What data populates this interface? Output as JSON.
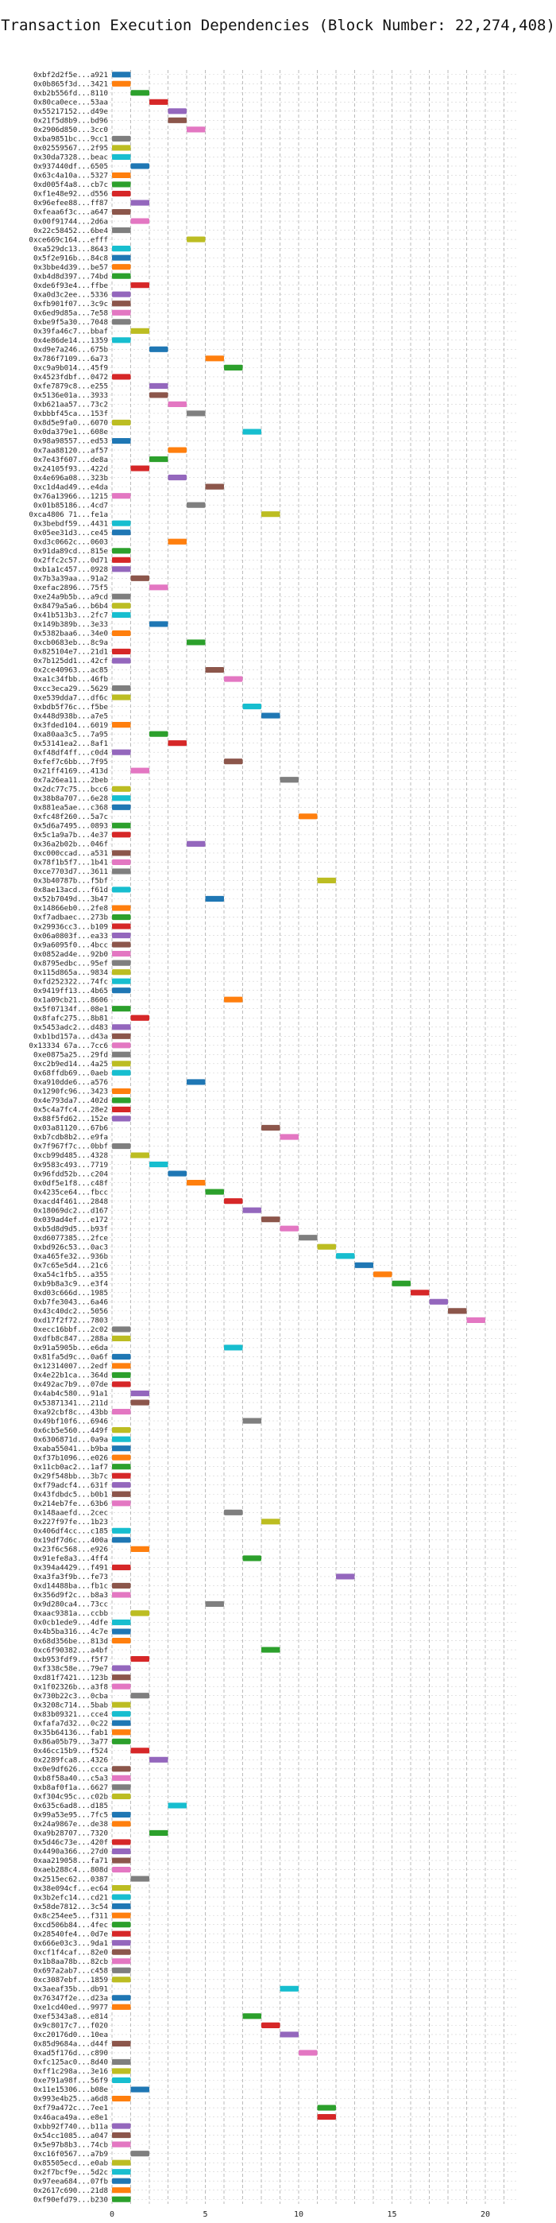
{
  "chart_data": {
    "type": "bar",
    "orientation": "horizontal",
    "title": "Transaction Execution Dependencies (Block Number: 22,274,408)",
    "xlabel": "",
    "ylabel": "",
    "xlim": [
      0,
      21
    ],
    "xticks": [
      0,
      5,
      10,
      15,
      20
    ],
    "grid": true,
    "palette": [
      "#1f77b4",
      "#ff7f0e",
      "#2ca02c",
      "#d62728",
      "#9467bd",
      "#8c564b",
      "#e377c2",
      "#7f7f7f",
      "#bcbd22",
      "#17becf"
    ],
    "transactions": [
      [
        "0xbf2d2f5e...a921",
        0,
        1,
        0
      ],
      [
        "0x0b865f3d...3421",
        0,
        1,
        1
      ],
      [
        "0xb2b556fd...8110",
        1,
        1,
        2
      ],
      [
        "0x80ca0ece...53aa",
        2,
        1,
        3
      ],
      [
        "0x55217152...d49e",
        3,
        1,
        4
      ],
      [
        "0x21f5d8b9...bd96",
        3,
        1,
        5
      ],
      [
        "0x2906d850...3cc0",
        4,
        1,
        6
      ],
      [
        "0xba9851bc...9cc1",
        0,
        1,
        7
      ],
      [
        "0x02559567...2f95",
        0,
        1,
        8
      ],
      [
        "0x30da7328...beac",
        0,
        1,
        9
      ],
      [
        "0x937440df...6505",
        1,
        1,
        0
      ],
      [
        "0x63c4a10a...5327",
        0,
        1,
        1
      ],
      [
        "0xd005f4a8...cb7c",
        0,
        1,
        2
      ],
      [
        "0xf1e48e92...d556",
        0,
        1,
        3
      ],
      [
        "0x96efee88...ff87",
        1,
        1,
        4
      ],
      [
        "0xfeaa6f3c...a647",
        0,
        1,
        5
      ],
      [
        "0x00f91744...2d6a",
        1,
        1,
        6
      ],
      [
        "0x22c58452...6be4",
        0,
        1,
        7
      ],
      [
        "0xce669c164...efff",
        4,
        1,
        8
      ],
      [
        "0xa529dc13...8643",
        0,
        1,
        9
      ],
      [
        "0x5f2e916b...84c8",
        0,
        1,
        0
      ],
      [
        "0x3bbe4d39...be57",
        0,
        1,
        1
      ],
      [
        "0xb4d8d397...74bd",
        0,
        1,
        2
      ],
      [
        "0xde6f93e4...ffbe",
        1,
        1,
        3
      ],
      [
        "0xa0d3c2ee...5336",
        0,
        1,
        4
      ],
      [
        "0xfb901f07...3c9c",
        0,
        1,
        5
      ],
      [
        "0x6ed9d85a...7e58",
        0,
        1,
        6
      ],
      [
        "0xbe9f5a30...7048",
        0,
        1,
        7
      ],
      [
        "0x39fa46c7...bbaf",
        1,
        1,
        8
      ],
      [
        "0x4e86de14...1359",
        0,
        1,
        9
      ],
      [
        "0xd9e7a246...675b",
        2,
        1,
        0
      ],
      [
        "0x786f7109...6a73",
        5,
        1,
        1
      ],
      [
        "0xc9a9b014...45f9",
        6,
        1,
        2
      ],
      [
        "0x4523fdbf...0472",
        0,
        1,
        3
      ],
      [
        "0xfe7879c8...e255",
        2,
        1,
        4
      ],
      [
        "0x5136e01a...3933",
        2,
        1,
        5
      ],
      [
        "0xb621aa57...73c2",
        3,
        1,
        6
      ],
      [
        "0xbbbf45ca...153f",
        4,
        1,
        7
      ],
      [
        "0x8d5e9fa0...6070",
        0,
        1,
        8
      ],
      [
        "0x0da379e1...608e",
        7,
        1,
        9
      ],
      [
        "0x98a98557...ed53",
        0,
        1,
        0
      ],
      [
        "0x7aa88120...af57",
        3,
        1,
        1
      ],
      [
        "0x7e43f607...de8a",
        2,
        1,
        2
      ],
      [
        "0x24105f93...422d",
        1,
        1,
        3
      ],
      [
        "0x4e696a08...323b",
        3,
        1,
        4
      ],
      [
        "0xc1d4ad49...e4da",
        5,
        1,
        5
      ],
      [
        "0x76a13966...1215",
        0,
        1,
        6
      ],
      [
        "0x01b85186...4cd7",
        4,
        1,
        7
      ],
      [
        "0xca4806 71...fe1a",
        8,
        1,
        8
      ],
      [
        "0x3bebdf59...4431",
        0,
        1,
        9
      ],
      [
        "0x05ee31d3...ce45",
        0,
        1,
        0
      ],
      [
        "0xd3c0662c...0603",
        3,
        1,
        1
      ],
      [
        "0x91da89cd...815e",
        0,
        1,
        2
      ],
      [
        "0x2ffc2c57...0d71",
        0,
        1,
        3
      ],
      [
        "0xb1a1c457...0928",
        0,
        1,
        4
      ],
      [
        "0x7b3a39aa...91a2",
        1,
        1,
        5
      ],
      [
        "0xefac2896...75f5",
        2,
        1,
        6
      ],
      [
        "0xe24a9b5b...a9cd",
        0,
        1,
        7
      ],
      [
        "0x8479a5a6...b6b4",
        0,
        1,
        8
      ],
      [
        "0x41b513b3...2fc7",
        0,
        1,
        9
      ],
      [
        "0x149b389b...3e33",
        2,
        1,
        0
      ],
      [
        "0x5382baa6...34e0",
        0,
        1,
        1
      ],
      [
        "0xcb0683eb...8c9a",
        4,
        1,
        2
      ],
      [
        "0x825104e7...21d1",
        0,
        1,
        3
      ],
      [
        "0x7b125dd1...42cf",
        0,
        1,
        4
      ],
      [
        "0x2ce40963...ac85",
        5,
        1,
        5
      ],
      [
        "0xa1c34fbb...46fb",
        6,
        1,
        6
      ],
      [
        "0xcc3eca29...5629",
        0,
        1,
        7
      ],
      [
        "0xe539dda7...df6c",
        0,
        1,
        8
      ],
      [
        "0xbdb5f76c...f5be",
        7,
        1,
        9
      ],
      [
        "0x448d938b...a7e5",
        8,
        1,
        0
      ],
      [
        "0x3fded104...6019",
        0,
        1,
        1
      ],
      [
        "0xa80aa3c5...7a95",
        2,
        1,
        2
      ],
      [
        "0x53141ea2...8af1",
        3,
        1,
        3
      ],
      [
        "0xf48df4ff...c0d4",
        0,
        1,
        4
      ],
      [
        "0xfef7c6bb...7f95",
        6,
        1,
        5
      ],
      [
        "0x21ff4169...413d",
        1,
        1,
        6
      ],
      [
        "0x7a26ea11...2beb",
        9,
        1,
        7
      ],
      [
        "0x2dc77c75...bcc6",
        0,
        1,
        8
      ],
      [
        "0x38b8a707...6e28",
        0,
        1,
        9
      ],
      [
        "0x881ea5ae...c368",
        0,
        1,
        0
      ],
      [
        "0xfc48f260...5a7c",
        10,
        1,
        1
      ],
      [
        "0x5d6a7495...0893",
        0,
        1,
        2
      ],
      [
        "0x5c1a9a7b...4e37",
        0,
        1,
        3
      ],
      [
        "0x36a2b02b...046f",
        4,
        1,
        4
      ],
      [
        "0xc000ccad...a531",
        0,
        1,
        5
      ],
      [
        "0x78f1b5f7...1b41",
        0,
        1,
        6
      ],
      [
        "0xce7703d7...3611",
        0,
        1,
        7
      ],
      [
        "0x3b40787b...f5bf",
        11,
        1,
        8
      ],
      [
        "0x8ae13acd...f61d",
        0,
        1,
        9
      ],
      [
        "0x52b7049d...3b47",
        5,
        1,
        0
      ],
      [
        "0x14866eb0...2fe8",
        0,
        1,
        1
      ],
      [
        "0xf7adbaec...273b",
        0,
        1,
        2
      ],
      [
        "0x29936cc3...b109",
        0,
        1,
        3
      ],
      [
        "0x06a0803f...ea33",
        0,
        1,
        4
      ],
      [
        "0x9a6095f0...4bcc",
        0,
        1,
        5
      ],
      [
        "0x0852ad4e...92b0",
        0,
        1,
        6
      ],
      [
        "0x8795edbc...95ef",
        0,
        1,
        7
      ],
      [
        "0x115d865a...9834",
        0,
        1,
        8
      ],
      [
        "0xfd252322...74fc",
        0,
        1,
        9
      ],
      [
        "0x9419ff13...4b65",
        0,
        1,
        0
      ],
      [
        "0x1a09cb21...8606",
        6,
        1,
        1
      ],
      [
        "0x5f07134f...08e1",
        0,
        1,
        2
      ],
      [
        "0x8fafc275...8b81",
        1,
        1,
        3
      ],
      [
        "0x5453adc2...d483",
        0,
        1,
        4
      ],
      [
        "0xb1bd157a...d43a",
        0,
        1,
        5
      ],
      [
        "0x13334 67a...7cc6",
        0,
        1,
        6
      ],
      [
        "0xe0875a25...29fd",
        0,
        1,
        7
      ],
      [
        "0xc2b9ed14...4a25",
        0,
        1,
        8
      ],
      [
        "0x68ffdb69...0aeb",
        0,
        1,
        9
      ],
      [
        "0xa910dde6...a576",
        4,
        1,
        0
      ],
      [
        "0x1290fc96...3423",
        0,
        1,
        1
      ],
      [
        "0x4e793da7...402d",
        0,
        1,
        2
      ],
      [
        "0x5c4a7fc4...28e2",
        0,
        1,
        3
      ],
      [
        "0x88f5fd62...152e",
        0,
        1,
        4
      ],
      [
        "0x03a81120...67b6",
        8,
        1,
        5
      ],
      [
        "0xb7cdb8b2...e9fa",
        9,
        1,
        6
      ],
      [
        "0x7f967f7c...0bbf",
        0,
        1,
        7
      ],
      [
        "0xcb99d485...4328",
        1,
        1,
        8
      ],
      [
        "0x9583c493...7719",
        2,
        1,
        9
      ],
      [
        "0x96fdd52b...c204",
        3,
        1,
        0
      ],
      [
        "0x0df5e1f8...c48f",
        4,
        1,
        1
      ],
      [
        "0x4235ce64...fbcc",
        5,
        1,
        2
      ],
      [
        "0xacd4f461...2848",
        6,
        1,
        3
      ],
      [
        "0x18069dc2...d167",
        7,
        1,
        4
      ],
      [
        "0x039ad4ef...e172",
        8,
        1,
        5
      ],
      [
        "0xb5d8d9d5...b93f",
        9,
        1,
        6
      ],
      [
        "0xd6077385...2fce",
        10,
        1,
        7
      ],
      [
        "0xbd926c53...0ac3",
        11,
        1,
        8
      ],
      [
        "0xa465fe32...936b",
        12,
        1,
        9
      ],
      [
        "0x7c65e5d4...21c6",
        13,
        1,
        0
      ],
      [
        "0xa54c1fb5...a355",
        14,
        1,
        1
      ],
      [
        "0xb9b8a3c9...e3f4",
        15,
        1,
        2
      ],
      [
        "0xd03c666d...1985",
        16,
        1,
        3
      ],
      [
        "0xb7fe3043...6a46",
        17,
        1,
        4
      ],
      [
        "0x43c40dc2...5056",
        18,
        1,
        5
      ],
      [
        "0xd17f2f72...7803",
        19,
        1,
        6
      ],
      [
        "0xecc16bbf...2c02",
        0,
        1,
        7
      ],
      [
        "0xdfb8c847...288a",
        0,
        1,
        8
      ],
      [
        "0x91a5905b...e6da",
        6,
        1,
        9
      ],
      [
        "0x81fa5d9c...0a6f",
        0,
        1,
        0
      ],
      [
        "0x12314007...2edf",
        0,
        1,
        1
      ],
      [
        "0x4e22b1ca...364d",
        0,
        1,
        2
      ],
      [
        "0x492ac7b9...07de",
        0,
        1,
        3
      ],
      [
        "0x4ab4c580...91a1",
        1,
        1,
        4
      ],
      [
        "0x53871341...211d",
        1,
        1,
        5
      ],
      [
        "0xa92cbf8c...43bb",
        0,
        1,
        6
      ],
      [
        "0x49bf10f6...6946",
        7,
        1,
        7
      ],
      [
        "0x6cb5e560...449f",
        0,
        1,
        8
      ],
      [
        "0x6306871d...0a9a",
        0,
        1,
        9
      ],
      [
        "0xaba55041...b9ba",
        0,
        1,
        0
      ],
      [
        "0xf37b1096...e026",
        0,
        1,
        1
      ],
      [
        "0x11cb0ac2...1af7",
        0,
        1,
        2
      ],
      [
        "0x29f548bb...3b7c",
        0,
        1,
        3
      ],
      [
        "0xf79adcf4...631f",
        0,
        1,
        4
      ],
      [
        "0x43fdbdc5...b0b1",
        0,
        1,
        5
      ],
      [
        "0x214eb7fe...63b6",
        0,
        1,
        6
      ],
      [
        "0x148aaefd...2cec",
        6,
        1,
        7
      ],
      [
        "0x227f97fe...1b23",
        8,
        1,
        8
      ],
      [
        "0x406df4cc...c185",
        0,
        1,
        9
      ],
      [
        "0x19df7d6c...400a",
        0,
        1,
        0
      ],
      [
        "0x23f6c568...e926",
        1,
        1,
        1
      ],
      [
        "0x91efe8a3...4ff4",
        7,
        1,
        2
      ],
      [
        "0x394a4429...f491",
        0,
        1,
        3
      ],
      [
        "0xa3fa3f9b...fe73",
        12,
        1,
        4
      ],
      [
        "0xd14488ba...fb1c",
        0,
        1,
        5
      ],
      [
        "0x356d9f2c...b8a3",
        0,
        1,
        6
      ],
      [
        "0x9d280ca4...73cc",
        5,
        1,
        7
      ],
      [
        "0xaac9381a...ccbb",
        1,
        1,
        8
      ],
      [
        "0x0cb1ede9...4dfe",
        0,
        1,
        9
      ],
      [
        "0x4b5ba316...4c7e",
        0,
        1,
        0
      ],
      [
        "0x68d356be...813d",
        0,
        1,
        1
      ],
      [
        "0xc6f90382...a4bf",
        8,
        1,
        2
      ],
      [
        "0xb953fdf9...f5f7",
        1,
        1,
        3
      ],
      [
        "0xf338c58e...79e7",
        0,
        1,
        4
      ],
      [
        "0xd81f7421...123b",
        0,
        1,
        5
      ],
      [
        "0x1f02326b...a3f8",
        0,
        1,
        6
      ],
      [
        "0x730b22c3...0cba",
        1,
        1,
        7
      ],
      [
        "0x3208c714...5bab",
        0,
        1,
        8
      ],
      [
        "0x83b09321...cce4",
        0,
        1,
        9
      ],
      [
        "0xfafa7d32...0c22",
        0,
        1,
        0
      ],
      [
        "0x35b64136...fab1",
        0,
        1,
        1
      ],
      [
        "0x86a05b79...3a77",
        0,
        1,
        2
      ],
      [
        "0x46cc15b9...f524",
        1,
        1,
        3
      ],
      [
        "0x2289fca8...4326",
        2,
        1,
        4
      ],
      [
        "0x0e9df626...ccca",
        0,
        1,
        5
      ],
      [
        "0xb8f58a40...c5a3",
        0,
        1,
        6
      ],
      [
        "0xb8af0f1a...6627",
        0,
        1,
        7
      ],
      [
        "0xf304c95c...c02b",
        0,
        1,
        8
      ],
      [
        "0x635c6ad8...d185",
        3,
        1,
        9
      ],
      [
        "0x99a53e95...7fc5",
        0,
        1,
        0
      ],
      [
        "0x24a9867e...de38",
        0,
        1,
        1
      ],
      [
        "0xa9b28707...7320",
        2,
        1,
        2
      ],
      [
        "0x5d46c73e...420f",
        0,
        1,
        3
      ],
      [
        "0x4490a366...27d0",
        0,
        1,
        4
      ],
      [
        "0xaa219058...fa71",
        0,
        1,
        5
      ],
      [
        "0xaeb288c4...808d",
        0,
        1,
        6
      ],
      [
        "0x2515ec62...0387",
        1,
        1,
        7
      ],
      [
        "0x38e094cf...ec64",
        0,
        1,
        8
      ],
      [
        "0x3b2efc14...cd21",
        0,
        1,
        9
      ],
      [
        "0x58de7812...3c54",
        0,
        1,
        0
      ],
      [
        "0x8c254ee5...f311",
        0,
        1,
        1
      ],
      [
        "0xcd506b84...4fec",
        0,
        1,
        2
      ],
      [
        "0x28540fe4...0d7e",
        0,
        1,
        3
      ],
      [
        "0x666e03c3...9da1",
        0,
        1,
        4
      ],
      [
        "0xcf1f4caf...82e0",
        0,
        1,
        5
      ],
      [
        "0x1b8aa78b...82cb",
        0,
        1,
        6
      ],
      [
        "0x697a2ab7...c458",
        0,
        1,
        7
      ],
      [
        "0xc3087ebf...1859",
        0,
        1,
        8
      ],
      [
        "0x3aeaf35b...db91",
        9,
        1,
        9
      ],
      [
        "0x76347f2e...d23a",
        0,
        1,
        0
      ],
      [
        "0xe1cd40ed...9977",
        0,
        1,
        1
      ],
      [
        "0xef5343a8...e814",
        7,
        1,
        2
      ],
      [
        "0x9c8017c7...f020",
        8,
        1,
        3
      ],
      [
        "0xc20176d0...10ea",
        9,
        1,
        4
      ],
      [
        "0x85d9684a...d44f",
        0,
        1,
        5
      ],
      [
        "0xad5f176d...c890",
        10,
        1,
        6
      ],
      [
        "0xfc125ac0...8d40",
        0,
        1,
        7
      ],
      [
        "0xff1c298a...3e16",
        0,
        1,
        8
      ],
      [
        "0xe791a98f...56f9",
        0,
        1,
        9
      ],
      [
        "0x11e15306...b08e",
        1,
        1,
        0
      ],
      [
        "0x993e4b25...a6d8",
        0,
        1,
        1
      ],
      [
        "0xf79a472c...7ee1",
        11,
        1,
        2
      ],
      [
        "0x46aca49a...e8e1",
        11,
        1,
        3
      ],
      [
        "0xbb92f740...b11a",
        0,
        1,
        4
      ],
      [
        "0x54cc1085...a047",
        0,
        1,
        5
      ],
      [
        "0x5e97b8b3...74cb",
        0,
        1,
        6
      ],
      [
        "0xc16f0567...a7b9",
        1,
        1,
        7
      ],
      [
        "0x85505ecd...e0ab",
        0,
        1,
        8
      ],
      [
        "0x2f7bcf9e...5d2c",
        0,
        1,
        9
      ],
      [
        "0x97eea684...07fb",
        0,
        1,
        0
      ],
      [
        "0x2617c690...21d8",
        0,
        1,
        1
      ],
      [
        "0xf90efd79...b230",
        0,
        1,
        2
      ]
    ]
  }
}
